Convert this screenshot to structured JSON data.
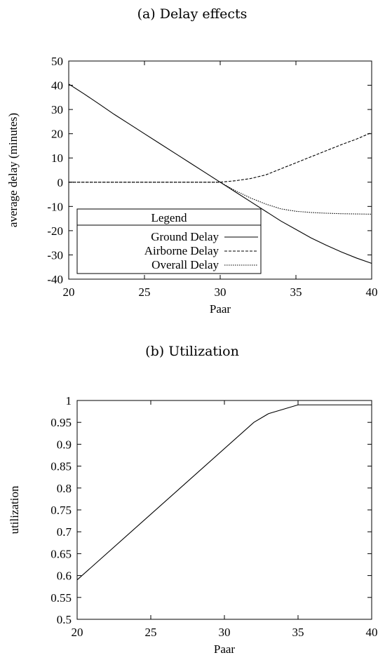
{
  "charts": [
    {
      "caption": "(a) Delay effects",
      "chart_data": {
        "type": "line",
        "xlabel": "Paar",
        "ylabel": "average delay (minutes)",
        "xlim": [
          20,
          40
        ],
        "ylim": [
          -40,
          50
        ],
        "xticks": [
          20,
          25,
          30,
          35,
          40
        ],
        "yticks": [
          -40,
          -30,
          -20,
          -10,
          0,
          10,
          20,
          30,
          40,
          50
        ],
        "grid": false,
        "legend": {
          "title": "Legend",
          "placement": "bottom-left"
        },
        "series": [
          {
            "name": "Ground Delay",
            "dash": "solid",
            "x": [
              20,
              21,
              22,
              23,
              24,
              25,
              26,
              27,
              28,
              29,
              30,
              31,
              32,
              33,
              34,
              35,
              36,
              37,
              38,
              39,
              40
            ],
            "y": [
              40.5,
              36.5,
              32.3,
              28,
              24,
              20,
              16,
              12,
              8,
              4,
              0,
              -4,
              -8,
              -12,
              -16,
              -19.5,
              -23,
              -26,
              -28.8,
              -31.3,
              -33.5
            ]
          },
          {
            "name": "Airborne Delay",
            "dash": "dashed",
            "x": [
              20,
              22,
              24,
              26,
              28,
              30,
              31,
              32,
              33,
              34,
              35,
              36,
              37,
              38,
              39,
              40
            ],
            "y": [
              0,
              0,
              0,
              0,
              0,
              0,
              0.6,
              1.5,
              3,
              5.5,
              8,
              10.5,
              13,
              15.5,
              17.8,
              20.5
            ]
          },
          {
            "name": "Overall Delay",
            "dash": "dotted",
            "x": [
              20,
              22,
              24,
              26,
              28,
              30,
              31,
              32,
              33,
              34,
              35,
              36,
              37,
              38,
              39,
              40
            ],
            "y": [
              0,
              0,
              0,
              0,
              0,
              0,
              -3.5,
              -6.5,
              -9,
              -11,
              -12,
              -12.5,
              -12.8,
              -13,
              -13.1,
              -13.2
            ]
          }
        ]
      }
    },
    {
      "caption": "(b) Utilization",
      "chart_data": {
        "type": "line",
        "xlabel": "Paar",
        "ylabel": "utilization",
        "xlim": [
          20,
          40
        ],
        "ylim": [
          0.5,
          1.0
        ],
        "xticks": [
          20,
          25,
          30,
          35,
          40
        ],
        "yticks": [
          0.5,
          0.55,
          0.6,
          0.65,
          0.7,
          0.75,
          0.8,
          0.85,
          0.9,
          0.95,
          1
        ],
        "ytick_labels": [
          "0.5",
          "0.55",
          "0.6",
          "0.65",
          "0.7",
          "0.75",
          "0.8",
          "0.85",
          "0.9",
          "0.95",
          "1"
        ],
        "grid": false,
        "series": [
          {
            "dash": "solid",
            "x": [
              20,
              32,
              33,
              35,
              40
            ],
            "y": [
              0.59,
              0.95,
              0.97,
              0.99,
              0.99
            ]
          }
        ]
      }
    }
  ]
}
